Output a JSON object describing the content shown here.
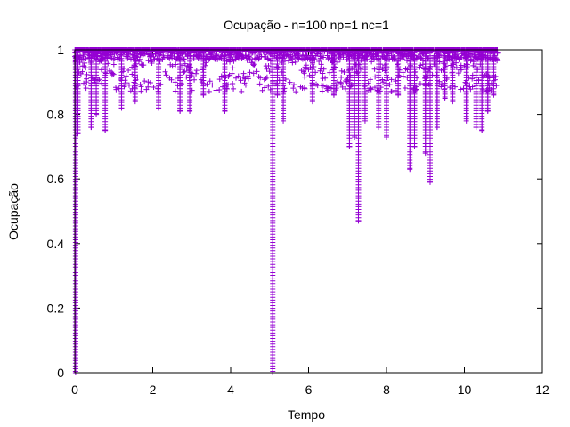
{
  "chart_data": {
    "type": "scatter",
    "title": "Ocupação - n=100 np=1 nc=1",
    "xlabel": "Tempo",
    "ylabel": "Ocupação",
    "xlim": [
      0,
      12
    ],
    "ylim": [
      0,
      1
    ],
    "xticks": [
      0,
      2,
      4,
      6,
      8,
      10,
      12
    ],
    "xtick_labels": [
      "0",
      "2",
      "4",
      "6",
      "8",
      "10",
      "12"
    ],
    "yticks": [
      0,
      0.2,
      0.4,
      0.6,
      0.8,
      1
    ],
    "ytick_labels": [
      "0",
      "0.2",
      "0.4",
      "0.6",
      "0.8",
      "1"
    ],
    "grid": false,
    "legend": "none",
    "marker": "+",
    "series_color": "#9400D3",
    "x_range_of_data": [
      0,
      10.85
    ],
    "dips": [
      {
        "x": 0.02,
        "min_y": 0.0
      },
      {
        "x": 0.08,
        "min_y": 0.74
      },
      {
        "x": 0.42,
        "min_y": 0.76
      },
      {
        "x": 0.55,
        "min_y": 0.8
      },
      {
        "x": 0.78,
        "min_y": 0.75
      },
      {
        "x": 1.2,
        "min_y": 0.82
      },
      {
        "x": 1.55,
        "min_y": 0.84
      },
      {
        "x": 2.15,
        "min_y": 0.82
      },
      {
        "x": 2.7,
        "min_y": 0.81
      },
      {
        "x": 2.95,
        "min_y": 0.81
      },
      {
        "x": 3.3,
        "min_y": 0.86
      },
      {
        "x": 3.85,
        "min_y": 0.81
      },
      {
        "x": 5.08,
        "min_y": 0.0
      },
      {
        "x": 5.2,
        "min_y": 0.86
      },
      {
        "x": 5.35,
        "min_y": 0.78
      },
      {
        "x": 6.1,
        "min_y": 0.84
      },
      {
        "x": 6.65,
        "min_y": 0.86
      },
      {
        "x": 7.05,
        "min_y": 0.7
      },
      {
        "x": 7.18,
        "min_y": 0.73
      },
      {
        "x": 7.28,
        "min_y": 0.47
      },
      {
        "x": 7.45,
        "min_y": 0.78
      },
      {
        "x": 7.8,
        "min_y": 0.76
      },
      {
        "x": 8.0,
        "min_y": 0.73
      },
      {
        "x": 8.3,
        "min_y": 0.86
      },
      {
        "x": 8.6,
        "min_y": 0.63
      },
      {
        "x": 8.72,
        "min_y": 0.7
      },
      {
        "x": 9.0,
        "min_y": 0.68
      },
      {
        "x": 9.12,
        "min_y": 0.59
      },
      {
        "x": 9.3,
        "min_y": 0.76
      },
      {
        "x": 9.5,
        "min_y": 0.85
      },
      {
        "x": 9.7,
        "min_y": 0.84
      },
      {
        "x": 10.05,
        "min_y": 0.78
      },
      {
        "x": 10.3,
        "min_y": 0.76
      },
      {
        "x": 10.45,
        "min_y": 0.75
      },
      {
        "x": 10.6,
        "min_y": 0.81
      },
      {
        "x": 10.75,
        "min_y": 0.86
      }
    ],
    "baseline_band": [
      0.87,
      1.0
    ]
  }
}
